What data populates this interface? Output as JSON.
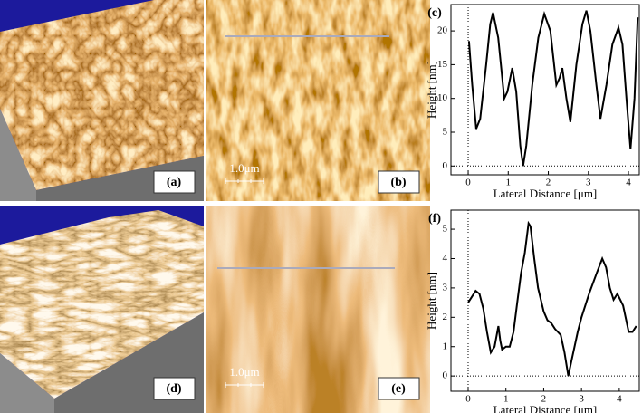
{
  "panels": {
    "a": "(a)",
    "b": "(b)",
    "d": "(d)",
    "e": "(e)",
    "b_scale_bar": "1.0μm",
    "e_scale_bar": "1.0μm"
  },
  "chart_data": [
    {
      "type": "line",
      "title": "(c)",
      "x_label": "Lateral Distance [μm]",
      "y_label": "Height [nm]",
      "color": "#000000",
      "x": [
        0.02,
        0.1,
        0.2,
        0.3,
        0.45,
        0.55,
        0.62,
        0.75,
        0.9,
        0.98,
        1.1,
        1.2,
        1.3,
        1.37,
        1.45,
        1.6,
        1.75,
        1.9,
        2.05,
        2.2,
        2.28,
        2.35,
        2.45,
        2.55,
        2.7,
        2.85,
        2.95,
        3.05,
        3.2,
        3.3,
        3.45,
        3.6,
        3.75,
        3.85,
        3.95,
        4.05,
        4.15,
        4.23
      ],
      "values": [
        18.5,
        12,
        5.5,
        7,
        15,
        21,
        22.7,
        19,
        10,
        11,
        14.5,
        11,
        3,
        0,
        3,
        12,
        19,
        22.5,
        20,
        12,
        13,
        14.5,
        10,
        6.5,
        15,
        21,
        23,
        20,
        12,
        7,
        12,
        18,
        20.5,
        18,
        10,
        2.5,
        10,
        22
      ],
      "xlim": [
        -0.43,
        4.27
      ],
      "ylim": [
        -1.3,
        23.9
      ],
      "xticks": [
        0,
        1,
        2,
        3,
        4
      ],
      "yticks": [
        0,
        5,
        10,
        15,
        20
      ]
    },
    {
      "type": "line",
      "title": "(f)",
      "x_label": "Lateral Distance [μm]",
      "y_label": "Height [nm]",
      "color": "#000000",
      "x": [
        0,
        0.1,
        0.2,
        0.3,
        0.4,
        0.5,
        0.6,
        0.7,
        0.8,
        0.85,
        0.9,
        1.0,
        1.1,
        1.2,
        1.3,
        1.4,
        1.5,
        1.6,
        1.65,
        1.75,
        1.85,
        2.0,
        2.1,
        2.2,
        2.3,
        2.45,
        2.55,
        2.65,
        2.75,
        2.9,
        3.0,
        3.2,
        3.4,
        3.55,
        3.65,
        3.75,
        3.85,
        3.95,
        4.1,
        4.25,
        4.35,
        4.45
      ],
      "values": [
        2.5,
        2.7,
        2.9,
        2.8,
        2.3,
        1.5,
        0.8,
        1.0,
        1.7,
        1.2,
        0.9,
        1.0,
        1.0,
        1.5,
        2.5,
        3.5,
        4.2,
        5.2,
        5.1,
        4.0,
        3.0,
        2.2,
        1.9,
        1.8,
        1.6,
        1.4,
        0.8,
        0.0,
        0.6,
        1.5,
        2.0,
        2.8,
        3.5,
        4.0,
        3.7,
        3.0,
        2.6,
        2.8,
        2.4,
        1.5,
        1.5,
        1.7
      ],
      "xlim": [
        -0.455,
        4.53
      ],
      "ylim": [
        -0.52,
        5.65
      ],
      "xticks": [
        0,
        1,
        2,
        3,
        4
      ],
      "yticks": [
        0,
        1,
        2,
        3,
        4,
        5
      ]
    }
  ]
}
